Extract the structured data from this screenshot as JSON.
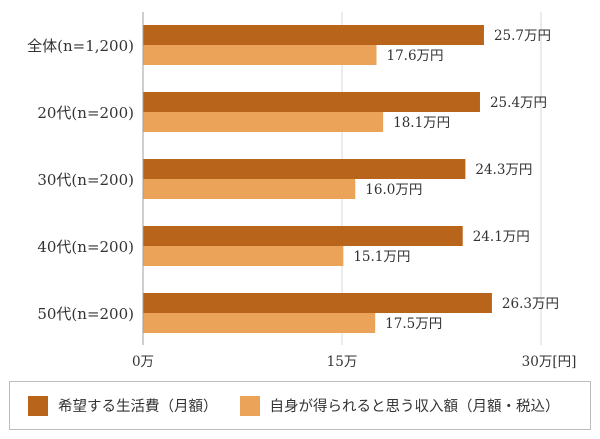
{
  "chart_data": {
    "type": "bar",
    "orientation": "horizontal",
    "categories": [
      "全体(n=1,200)",
      "20代(n=200)",
      "30代(n=200)",
      "40代(n=200)",
      "50代(n=200)"
    ],
    "series": [
      {
        "name": "希望する生活費（月額）",
        "color": "#b8641a",
        "values": [
          25.7,
          25.4,
          24.3,
          24.1,
          26.3
        ]
      },
      {
        "name": "自身が得られると思う収入額（月額・税込）",
        "color": "#eba35a",
        "values": [
          17.6,
          18.1,
          16.0,
          15.1,
          17.5
        ]
      }
    ],
    "value_labels": [
      [
        "25.7万円",
        "25.4万円",
        "24.3万円",
        "24.1万円",
        "26.3万円"
      ],
      [
        "17.6万円",
        "18.1万円",
        "16.0万円",
        "15.1万円",
        "17.5万円"
      ]
    ],
    "x_ticks": [
      0,
      15,
      30
    ],
    "x_tick_labels": [
      "0万",
      "15万",
      "30万[円]"
    ],
    "xlim": [
      0,
      30
    ],
    "grid": true,
    "legend_position": "bottom"
  }
}
